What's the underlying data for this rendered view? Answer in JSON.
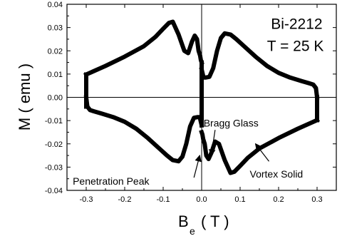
{
  "chart_data": {
    "type": "line",
    "xlabel": "B",
    "xlabel_sub": "e",
    "xlabel_unit": "( T )",
    "ylabel": "M ( emu )",
    "xlim": [
      -0.35,
      0.35
    ],
    "ylim": [
      -0.04,
      0.04
    ],
    "xticks": [
      -0.3,
      -0.2,
      -0.1,
      0.0,
      0.1,
      0.2,
      0.3
    ],
    "xtick_labels": [
      "-0.3",
      "-0.2",
      "-0.1",
      "0.0",
      "0.1",
      "0.2",
      "0.3"
    ],
    "yticks": [
      -0.04,
      -0.03,
      -0.02,
      -0.01,
      0.0,
      0.01,
      0.02,
      0.03,
      0.04
    ],
    "ytick_labels": [
      "-0.04",
      "-0.03",
      "-0.02",
      "-0.01",
      "0.00",
      "0.01",
      "0.02",
      "0.03",
      "0.04"
    ],
    "grid": false,
    "legend": "none",
    "series": [
      {
        "x": [
          -0.3,
          -0.25,
          -0.2,
          -0.15,
          -0.12,
          -0.1,
          -0.085,
          -0.075,
          -0.06,
          -0.045,
          -0.035,
          -0.025,
          -0.018,
          -0.012,
          -0.008,
          -0.004,
          -0.002,
          0.0
        ],
        "y": [
          0.0098,
          0.0135,
          0.0175,
          0.022,
          0.026,
          0.0295,
          0.032,
          0.0325,
          0.027,
          0.02,
          0.019,
          0.024,
          0.0265,
          0.025,
          0.02,
          0.018,
          0.016,
          0.015
        ]
      },
      {
        "x": [
          0.0,
          0.005,
          0.01,
          0.02,
          0.03,
          0.04,
          0.05,
          0.06,
          0.075,
          0.09,
          0.11,
          0.14,
          0.17,
          0.2,
          0.23,
          0.26,
          0.28,
          0.29,
          0.297,
          0.3
        ],
        "y": [
          0.012,
          0.0085,
          0.0085,
          0.0088,
          0.0125,
          0.02,
          0.0255,
          0.0275,
          0.027,
          0.025,
          0.022,
          0.0175,
          0.0135,
          0.0105,
          0.0085,
          0.007,
          0.006,
          0.0055,
          0.004,
          0.0
        ]
      },
      {
        "x": [
          0.3,
          0.25,
          0.2,
          0.15,
          0.12,
          0.1,
          0.085,
          0.075,
          0.06,
          0.045,
          0.035,
          0.025,
          0.018,
          0.012,
          0.008,
          0.004,
          0.002,
          0.0
        ],
        "y": [
          -0.0098,
          -0.0135,
          -0.0175,
          -0.022,
          -0.026,
          -0.0295,
          -0.032,
          -0.0325,
          -0.027,
          -0.02,
          -0.019,
          -0.024,
          -0.0265,
          -0.025,
          -0.02,
          -0.018,
          -0.016,
          -0.015
        ]
      },
      {
        "x": [
          0.0,
          -0.005,
          -0.01,
          -0.02,
          -0.03,
          -0.04,
          -0.05,
          -0.06,
          -0.075,
          -0.09,
          -0.11,
          -0.14,
          -0.17,
          -0.2,
          -0.23,
          -0.26,
          -0.28,
          -0.29,
          -0.297,
          -0.3
        ],
        "y": [
          -0.012,
          -0.0085,
          -0.0085,
          -0.0088,
          -0.0125,
          -0.02,
          -0.0255,
          -0.0275,
          -0.027,
          -0.025,
          -0.022,
          -0.0175,
          -0.0135,
          -0.0105,
          -0.0085,
          -0.007,
          -0.006,
          -0.0055,
          -0.004,
          0.0
        ]
      },
      {
        "x": [
          -0.3,
          -0.3,
          -0.3,
          -0.3
        ],
        "y": [
          0.0098,
          0.005,
          0.0,
          -0.004
        ]
      },
      {
        "x": [
          0.0,
          0.0,
          0.0,
          0.0
        ],
        "y": [
          0.015,
          0.005,
          0.0,
          -0.012
        ]
      },
      {
        "x": [
          0.3,
          0.3
        ],
        "y": [
          0.0,
          -0.0098
        ]
      }
    ],
    "annotations": [
      {
        "text": "Bi-2212",
        "x": 0.18,
        "y": 0.0295,
        "kind": "big"
      },
      {
        "text": "T = 25 K",
        "x": 0.17,
        "y": 0.02,
        "kind": "big"
      },
      {
        "text": "Bragg Glass",
        "x": 0.005,
        "y": -0.0125,
        "kind": "small",
        "arrow": [
          0.035,
          -0.014,
          0.025,
          -0.025
        ]
      },
      {
        "text": "Penetration Peak",
        "x": -0.335,
        "y": -0.0375,
        "kind": "small",
        "arrow": [
          -0.02,
          -0.0345,
          -0.005,
          -0.025
        ]
      },
      {
        "text": "Vortex Solid",
        "x": 0.125,
        "y": -0.0345,
        "kind": "small",
        "arrow": [
          0.175,
          -0.0275,
          0.14,
          -0.02
        ]
      }
    ]
  }
}
